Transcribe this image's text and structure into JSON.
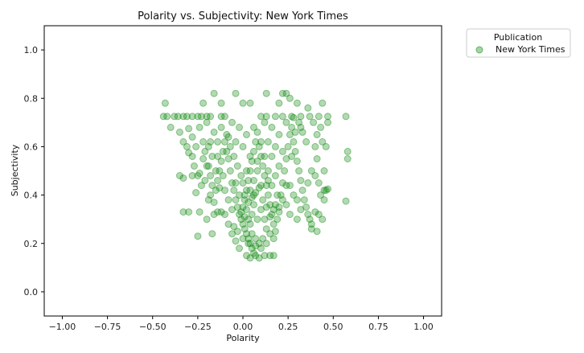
{
  "chart_data": {
    "type": "scatter",
    "title": "Polarity vs. Subjectivity: New York Times",
    "xlabel": "Polarity",
    "ylabel": "Subjectivity",
    "xlim": [
      -1.1,
      1.1
    ],
    "ylim": [
      -0.1,
      1.1
    ],
    "xticks": [
      -1.0,
      -0.75,
      -0.5,
      -0.25,
      0.0,
      0.25,
      0.5,
      0.75,
      1.0
    ],
    "xtick_labels": [
      "−1.00",
      "−0.75",
      "−0.50",
      "−0.25",
      "0.00",
      "0.25",
      "0.50",
      "0.75",
      "1.00"
    ],
    "yticks": [
      0.0,
      0.2,
      0.4,
      0.6,
      0.8,
      1.0
    ],
    "ytick_labels": [
      "0.0",
      "0.2",
      "0.4",
      "0.6",
      "0.8",
      "1.0"
    ],
    "grid": false,
    "legend": {
      "title": "Publication",
      "placement": "outside-upper-right",
      "entries": [
        "New York Times"
      ]
    },
    "series": [
      {
        "name": "New York Times",
        "color": "#008000",
        "alpha": 0.3,
        "points": [
          [
            -0.44,
            0.725
          ],
          [
            -0.42,
            0.725
          ],
          [
            -0.43,
            0.78
          ],
          [
            -0.38,
            0.725
          ],
          [
            -0.36,
            0.725
          ],
          [
            -0.33,
            0.725
          ],
          [
            -0.31,
            0.725
          ],
          [
            -0.3,
            0.675
          ],
          [
            -0.28,
            0.725
          ],
          [
            -0.25,
            0.725
          ],
          [
            -0.23,
            0.725
          ],
          [
            -0.2,
            0.725
          ],
          [
            -0.18,
            0.725
          ],
          [
            -0.12,
            0.725
          ],
          [
            -0.1,
            0.725
          ],
          [
            0.1,
            0.725
          ],
          [
            0.13,
            0.725
          ],
          [
            0.18,
            0.725
          ],
          [
            0.22,
            0.725
          ],
          [
            0.27,
            0.725
          ],
          [
            0.32,
            0.725
          ],
          [
            0.37,
            0.725
          ],
          [
            0.42,
            0.725
          ],
          [
            0.47,
            0.725
          ],
          [
            0.57,
            0.725
          ],
          [
            -0.22,
            0.78
          ],
          [
            -0.16,
            0.82
          ],
          [
            -0.12,
            0.78
          ],
          [
            -0.04,
            0.82
          ],
          [
            0.0,
            0.78
          ],
          [
            0.04,
            0.78
          ],
          [
            0.13,
            0.82
          ],
          [
            0.2,
            0.78
          ],
          [
            0.22,
            0.82
          ],
          [
            0.24,
            0.82
          ],
          [
            0.3,
            0.78
          ],
          [
            0.36,
            0.76
          ],
          [
            0.44,
            0.78
          ],
          [
            0.26,
            0.8
          ],
          [
            -0.4,
            0.68
          ],
          [
            -0.35,
            0.66
          ],
          [
            -0.33,
            0.62
          ],
          [
            -0.31,
            0.6
          ],
          [
            -0.3,
            0.575
          ],
          [
            -0.28,
            0.56
          ],
          [
            -0.35,
            0.48
          ],
          [
            -0.33,
            0.47
          ],
          [
            -0.28,
            0.48
          ],
          [
            -0.25,
            0.48
          ],
          [
            -0.27,
            0.52
          ],
          [
            -0.24,
            0.49
          ],
          [
            -0.22,
            0.55
          ],
          [
            -0.21,
            0.58
          ],
          [
            -0.19,
            0.6
          ],
          [
            -0.2,
            0.52
          ],
          [
            -0.18,
            0.48
          ],
          [
            -0.17,
            0.44
          ],
          [
            -0.18,
            0.4
          ],
          [
            -0.19,
            0.38
          ],
          [
            -0.16,
            0.37
          ],
          [
            -0.15,
            0.42
          ],
          [
            -0.14,
            0.46
          ],
          [
            -0.13,
            0.5
          ],
          [
            -0.12,
            0.54
          ],
          [
            -0.11,
            0.58
          ],
          [
            -0.1,
            0.62
          ],
          [
            -0.09,
            0.65
          ],
          [
            -0.08,
            0.55
          ],
          [
            -0.07,
            0.5
          ],
          [
            -0.06,
            0.45
          ],
          [
            -0.05,
            0.42
          ],
          [
            -0.04,
            0.38
          ],
          [
            -0.03,
            0.35
          ],
          [
            -0.02,
            0.32
          ],
          [
            -0.01,
            0.3
          ],
          [
            0.0,
            0.28
          ],
          [
            0.01,
            0.26
          ],
          [
            0.02,
            0.24
          ],
          [
            0.03,
            0.22
          ],
          [
            0.04,
            0.2
          ],
          [
            0.05,
            0.18
          ],
          [
            0.06,
            0.16
          ],
          [
            0.07,
            0.15
          ],
          [
            0.04,
            0.14
          ],
          [
            0.02,
            0.15
          ],
          [
            0.09,
            0.14
          ],
          [
            0.12,
            0.15
          ],
          [
            0.15,
            0.15
          ],
          [
            0.17,
            0.15
          ],
          [
            -0.02,
            0.18
          ],
          [
            -0.04,
            0.21
          ],
          [
            -0.06,
            0.24
          ],
          [
            -0.08,
            0.28
          ],
          [
            -0.1,
            0.32
          ],
          [
            -0.12,
            0.33
          ],
          [
            -0.14,
            0.33
          ],
          [
            -0.16,
            0.32
          ],
          [
            -0.24,
            0.33
          ],
          [
            -0.3,
            0.33
          ],
          [
            -0.33,
            0.33
          ],
          [
            -0.25,
            0.23
          ],
          [
            -0.17,
            0.24
          ],
          [
            -0.2,
            0.3
          ],
          [
            -0.26,
            0.41
          ],
          [
            0.0,
            0.35
          ],
          [
            0.01,
            0.38
          ],
          [
            0.02,
            0.42
          ],
          [
            0.03,
            0.46
          ],
          [
            0.04,
            0.5
          ],
          [
            0.05,
            0.54
          ],
          [
            0.06,
            0.58
          ],
          [
            0.07,
            0.62
          ],
          [
            0.08,
            0.66
          ],
          [
            0.09,
            0.6
          ],
          [
            0.1,
            0.56
          ],
          [
            0.11,
            0.52
          ],
          [
            0.12,
            0.48
          ],
          [
            0.13,
            0.44
          ],
          [
            0.14,
            0.4
          ],
          [
            0.15,
            0.36
          ],
          [
            0.16,
            0.32
          ],
          [
            0.17,
            0.28
          ],
          [
            0.18,
            0.25
          ],
          [
            0.19,
            0.3
          ],
          [
            0.2,
            0.35
          ],
          [
            0.21,
            0.4
          ],
          [
            0.22,
            0.45
          ],
          [
            0.23,
            0.5
          ],
          [
            0.24,
            0.55
          ],
          [
            0.25,
            0.6
          ],
          [
            0.26,
            0.65
          ],
          [
            0.27,
            0.68
          ],
          [
            0.28,
            0.62
          ],
          [
            0.29,
            0.58
          ],
          [
            0.3,
            0.54
          ],
          [
            0.31,
            0.5
          ],
          [
            0.32,
            0.46
          ],
          [
            0.33,
            0.42
          ],
          [
            0.34,
            0.38
          ],
          [
            0.35,
            0.35
          ],
          [
            0.36,
            0.32
          ],
          [
            0.37,
            0.3
          ],
          [
            0.4,
            0.33
          ],
          [
            0.42,
            0.32
          ],
          [
            0.44,
            0.3
          ],
          [
            0.38,
            0.28
          ],
          [
            0.38,
            0.26
          ],
          [
            0.41,
            0.25
          ],
          [
            0.36,
            0.45
          ],
          [
            0.38,
            0.5
          ],
          [
            0.4,
            0.48
          ],
          [
            0.42,
            0.45
          ],
          [
            0.45,
            0.5
          ],
          [
            0.46,
            0.42
          ],
          [
            0.45,
            0.38
          ],
          [
            0.43,
            0.4
          ],
          [
            0.41,
            0.55
          ],
          [
            0.4,
            0.6
          ],
          [
            0.44,
            0.62
          ],
          [
            0.46,
            0.6
          ],
          [
            0.43,
            0.68
          ],
          [
            0.47,
            0.7
          ],
          [
            0.41,
            0.65
          ],
          [
            0.39,
            0.7
          ],
          [
            0.57,
            0.375
          ],
          [
            0.58,
            0.55
          ],
          [
            0.58,
            0.58
          ],
          [
            0.47,
            0.425
          ],
          [
            0.45,
            0.42
          ],
          [
            0.35,
            0.62
          ],
          [
            0.33,
            0.66
          ],
          [
            0.31,
            0.7
          ],
          [
            0.29,
            0.66
          ],
          [
            0.27,
            0.56
          ],
          [
            0.24,
            0.44
          ],
          [
            0.22,
            0.38
          ],
          [
            0.2,
            0.33
          ],
          [
            0.18,
            0.36
          ],
          [
            0.16,
            0.44
          ],
          [
            0.14,
            0.5
          ],
          [
            0.12,
            0.56
          ],
          [
            0.1,
            0.62
          ],
          [
            0.08,
            0.5
          ],
          [
            0.06,
            0.4
          ],
          [
            0.05,
            0.32
          ],
          [
            0.04,
            0.28
          ],
          [
            0.03,
            0.3
          ],
          [
            0.02,
            0.34
          ],
          [
            0.01,
            0.4
          ],
          [
            0.0,
            0.45
          ],
          [
            -0.01,
            0.48
          ],
          [
            -0.03,
            0.52
          ],
          [
            -0.05,
            0.56
          ],
          [
            -0.07,
            0.6
          ],
          [
            -0.09,
            0.58
          ],
          [
            -0.11,
            0.48
          ],
          [
            -0.13,
            0.43
          ],
          [
            -0.15,
            0.5
          ],
          [
            -0.17,
            0.56
          ],
          [
            -0.19,
            0.52
          ],
          [
            -0.21,
            0.46
          ],
          [
            -0.23,
            0.44
          ],
          [
            -0.16,
            0.66
          ],
          [
            -0.12,
            0.68
          ],
          [
            -0.06,
            0.7
          ],
          [
            -0.02,
            0.68
          ],
          [
            0.02,
            0.65
          ],
          [
            0.06,
            0.68
          ],
          [
            0.12,
            0.7
          ],
          [
            0.16,
            0.68
          ],
          [
            0.2,
            0.65
          ],
          [
            0.24,
            0.7
          ],
          [
            0.28,
            0.72
          ],
          [
            0.32,
            0.68
          ],
          [
            0.05,
            0.24
          ],
          [
            0.07,
            0.22
          ],
          [
            0.09,
            0.2
          ],
          [
            0.11,
            0.22
          ],
          [
            0.13,
            0.26
          ],
          [
            0.08,
            0.3
          ],
          [
            0.1,
            0.34
          ],
          [
            0.12,
            0.3
          ],
          [
            0.06,
            0.36
          ],
          [
            0.04,
            0.42
          ],
          [
            -0.02,
            0.4
          ],
          [
            -0.04,
            0.45
          ],
          [
            -0.06,
            0.34
          ],
          [
            -0.08,
            0.38
          ],
          [
            -0.1,
            0.42
          ],
          [
            0.02,
            0.5
          ],
          [
            0.06,
            0.46
          ],
          [
            0.1,
            0.44
          ],
          [
            0.14,
            0.46
          ],
          [
            0.18,
            0.48
          ],
          [
            0.2,
            0.52
          ],
          [
            0.22,
            0.58
          ],
          [
            0.18,
            0.6
          ],
          [
            0.16,
            0.56
          ],
          [
            0.14,
            0.62
          ],
          [
            -0.14,
            0.56
          ],
          [
            -0.18,
            0.62
          ],
          [
            -0.22,
            0.62
          ],
          [
            -0.26,
            0.6
          ],
          [
            -0.28,
            0.64
          ],
          [
            -0.24,
            0.68
          ],
          [
            -0.2,
            0.7
          ],
          [
            -0.14,
            0.62
          ],
          [
            -0.08,
            0.64
          ],
          [
            -0.04,
            0.62
          ],
          [
            0.0,
            0.6
          ],
          [
            0.04,
            0.56
          ],
          [
            0.08,
            0.54
          ],
          [
            0.26,
            0.44
          ],
          [
            0.28,
            0.4
          ],
          [
            0.3,
            0.38
          ],
          [
            0.32,
            0.34
          ],
          [
            0.3,
            0.3
          ],
          [
            0.26,
            0.32
          ],
          [
            0.24,
            0.36
          ],
          [
            -0.05,
            0.27
          ],
          [
            -0.03,
            0.25
          ],
          [
            0.0,
            0.22
          ],
          [
            0.03,
            0.2
          ],
          [
            0.07,
            0.19
          ],
          [
            0.1,
            0.18
          ],
          [
            0.13,
            0.2
          ],
          [
            0.15,
            0.24
          ],
          [
            0.17,
            0.22
          ],
          [
            -0.01,
            0.33
          ],
          [
            0.01,
            0.31
          ],
          [
            0.03,
            0.37
          ],
          [
            0.05,
            0.39
          ],
          [
            0.07,
            0.41
          ],
          [
            0.09,
            0.43
          ],
          [
            0.11,
            0.38
          ],
          [
            0.13,
            0.35
          ],
          [
            0.15,
            0.31
          ],
          [
            0.17,
            0.34
          ],
          [
            0.19,
            0.4
          ]
        ]
      }
    ]
  }
}
